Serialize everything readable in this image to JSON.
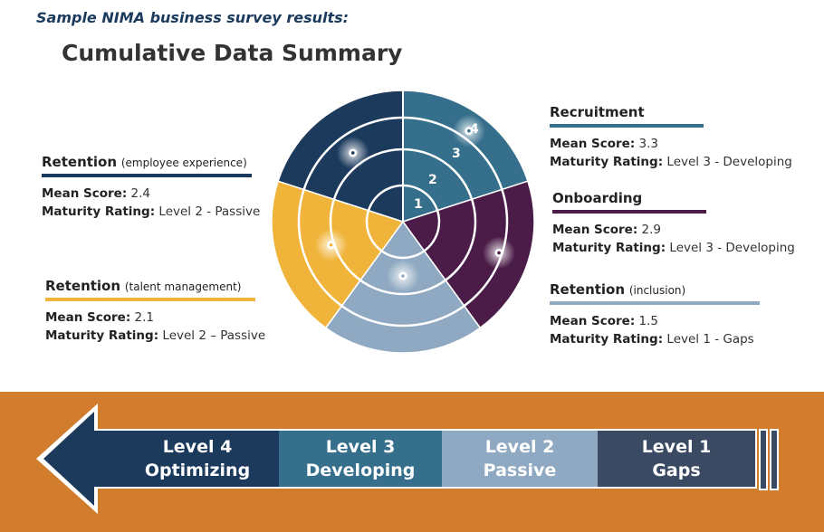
{
  "header": {
    "kicker": "Sample NIMA business survey results:",
    "title": "Cumulative Data Summary"
  },
  "categories": [
    {
      "name": "Retention",
      "sub": "(employee experience)",
      "mean_label": "Mean Score:",
      "mean": "2.4",
      "rating_label": "Maturity Rating:",
      "rating": "Level 2 - Passive",
      "color": "#1b3a5c"
    },
    {
      "name": "Retention",
      "sub": "(talent management)",
      "mean_label": "Mean Score:",
      "mean": "2.1",
      "rating_label": "Maturity Rating:",
      "rating": "Level 2 – Passive",
      "color": "#f0b43a"
    },
    {
      "name": "Recruitment",
      "sub": "",
      "mean_label": "Mean Score:",
      "mean": "3.3",
      "rating_label": "Maturity Rating:",
      "rating": "Level 3 - Developing",
      "color": "#356f8c"
    },
    {
      "name": "Onboarding",
      "sub": "",
      "mean_label": "Mean Score:",
      "mean": "2.9",
      "rating_label": "Maturity Rating:",
      "rating": "Level 3 - Developing",
      "color": "#4a1c47"
    },
    {
      "name": "Retention",
      "sub": "(inclusion)",
      "mean_label": "Mean Score:",
      "mean": "1.5",
      "rating_label": "Maturity Rating:",
      "rating": "Level 1 - Gaps",
      "color": "#8ea9c1"
    }
  ],
  "wheel": {
    "ring_labels": [
      "1",
      "2",
      "3",
      "4"
    ],
    "sectors": [
      {
        "category": "Recruitment",
        "level": 4,
        "score": 3.3,
        "color": "#356f8c"
      },
      {
        "category": "Onboarding",
        "level": 4,
        "score": 2.9,
        "color": "#4a1c47"
      },
      {
        "category": "Retention (inclusion)",
        "level": 4,
        "score": 1.5,
        "color": "#8ea9c1"
      },
      {
        "category": "Retention (talent management)",
        "level": 4,
        "score": 2.1,
        "color": "#f0b43a"
      },
      {
        "category": "Retention (employee experience)",
        "level": 4,
        "score": 2.4,
        "color": "#1b3a5c"
      }
    ]
  },
  "scale": {
    "band_color": "#d17d2d",
    "levels": [
      {
        "line1": "Level 4",
        "line2": "Optimizing",
        "color": "#1b3a5c"
      },
      {
        "line1": "Level 3",
        "line2": "Developing",
        "color": "#356f8c"
      },
      {
        "line1": "Level 2",
        "line2": "Passive",
        "color": "#8ea9c1"
      },
      {
        "line1": "Level 1",
        "line2": "Gaps",
        "color": "#3a4a63"
      }
    ]
  }
}
